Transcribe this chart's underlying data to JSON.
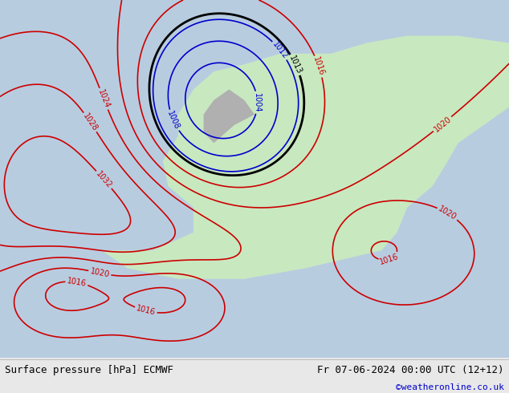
{
  "title": "",
  "footer_left": "Surface pressure [hPa] ECMWF",
  "footer_right": "Fr 07-06-2024 00:00 UTC (12+12)",
  "footer_url": "©weatheronline.co.uk",
  "fig_width": 6.34,
  "fig_height": 4.9,
  "dpi": 100,
  "bg_ocean": "#c8d8f0",
  "bg_land_europe": "#c8e8c8",
  "bg_land_other": "#e8e8e8",
  "contour_low_color": "#0000cc",
  "contour_high_color": "#cc0000",
  "contour_front_color": "#000000",
  "footer_bg": "#f0f0f0",
  "footer_text_color": "#000000",
  "footer_url_color": "#0000cc",
  "map_bg_color": "#d8e8f8"
}
